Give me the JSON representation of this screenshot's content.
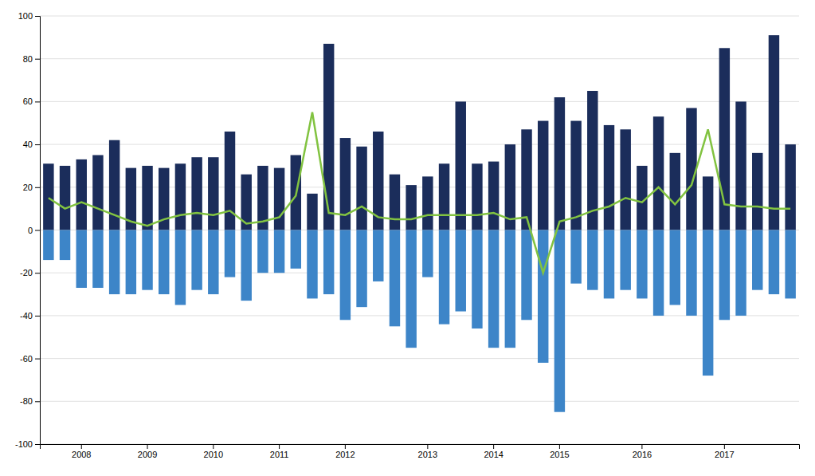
{
  "chart_data": {
    "type": "bar",
    "categories": [
      null,
      null,
      "2008",
      null,
      null,
      null,
      "2009",
      null,
      null,
      null,
      "2010",
      null,
      null,
      null,
      "2011",
      null,
      null,
      null,
      "2012",
      null,
      null,
      null,
      null,
      "2013",
      null,
      null,
      null,
      "2014",
      null,
      null,
      null,
      "2015",
      null,
      null,
      null,
      null,
      "2016",
      null,
      null,
      null,
      null,
      "2017",
      null,
      null,
      null,
      null
    ],
    "series": [
      {
        "type": "bar",
        "color": "#1b2d5b",
        "values": [
          31,
          30,
          33,
          35,
          42,
          29,
          30,
          29,
          31,
          34,
          34,
          46,
          26,
          30,
          29,
          35,
          17,
          87,
          43,
          39,
          46,
          26,
          21,
          25,
          31,
          60,
          31,
          32,
          40,
          47,
          51,
          62,
          51,
          65,
          49,
          47,
          30,
          53,
          36,
          57,
          25,
          85,
          60,
          36,
          91,
          40
        ]
      },
      {
        "type": "bar",
        "color": "#3d85c8",
        "values": [
          -14,
          -14,
          -27,
          -27,
          -30,
          -30,
          -28,
          -30,
          -35,
          -28,
          -30,
          -22,
          -33,
          -20,
          -20,
          -18,
          -32,
          -30,
          -42,
          -36,
          -24,
          -45,
          -55,
          -22,
          -44,
          -38,
          -46,
          -55,
          -55,
          -42,
          -62,
          -85,
          -25,
          -28,
          -32,
          -28,
          -32,
          -40,
          -35,
          -40,
          -68,
          -42,
          -40,
          -28,
          -30,
          -32
        ]
      },
      {
        "type": "line",
        "color": "#82c341",
        "values": [
          15,
          10,
          13,
          10,
          7,
          4,
          2,
          5,
          7,
          8,
          7,
          9,
          3,
          4,
          6,
          16,
          55,
          8,
          7,
          11,
          6,
          5,
          5,
          7,
          7,
          7,
          7,
          8,
          5,
          6,
          -20,
          4,
          6,
          9,
          11,
          15,
          13,
          20,
          12,
          21,
          47,
          12,
          11,
          11,
          10,
          10
        ]
      }
    ],
    "ylim": [
      -100,
      100
    ],
    "yticks": [
      -100,
      -80,
      -60,
      -40,
      -20,
      0,
      20,
      40,
      60,
      80,
      100
    ],
    "grid": true
  }
}
